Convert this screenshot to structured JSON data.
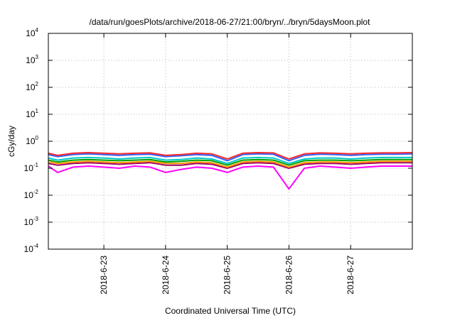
{
  "chart_data": {
    "type": "line",
    "title": "/data/run/goesPlots/archive/2018-06-27/21:00/bryn/../bryn/5daysMoon.plot",
    "xlabel": "Coordinated Universal Time (UTC)",
    "ylabel": "cGy/day",
    "yscale": "log",
    "ylim": [
      0.0001,
      10000
    ],
    "xlim": [
      22.1,
      28.0
    ],
    "grid": true,
    "y_ticks": [
      {
        "value": 0.0001,
        "base": "10",
        "exp": "-4"
      },
      {
        "value": 0.001,
        "base": "10",
        "exp": "-3"
      },
      {
        "value": 0.01,
        "base": "10",
        "exp": "-2"
      },
      {
        "value": 0.1,
        "base": "10",
        "exp": "-1"
      },
      {
        "value": 1,
        "base": "10",
        "exp": "0"
      },
      {
        "value": 10,
        "base": "10",
        "exp": "1"
      },
      {
        "value": 100,
        "base": "10",
        "exp": "2"
      },
      {
        "value": 1000,
        "base": "10",
        "exp": "3"
      },
      {
        "value": 10000,
        "base": "10",
        "exp": "4"
      }
    ],
    "x_ticks": [
      {
        "value": 23,
        "label": "2018-6-23"
      },
      {
        "value": 24,
        "label": "2018-6-24"
      },
      {
        "value": 25,
        "label": "2018-6-25"
      },
      {
        "value": 26,
        "label": "2018-6-26"
      },
      {
        "value": 27,
        "label": "2018-6-27"
      }
    ],
    "x": [
      22.1,
      22.25,
      22.5,
      22.75,
      23.0,
      23.25,
      23.5,
      23.75,
      24.0,
      24.25,
      24.5,
      24.75,
      25.0,
      25.25,
      25.5,
      25.75,
      26.0,
      26.25,
      26.5,
      26.75,
      27.0,
      27.25,
      27.5,
      27.75,
      28.0
    ],
    "series": [
      {
        "color": "#ff2a2a",
        "values": [
          0.36,
          0.3,
          0.36,
          0.38,
          0.36,
          0.34,
          0.36,
          0.37,
          0.3,
          0.32,
          0.36,
          0.34,
          0.22,
          0.36,
          0.38,
          0.37,
          0.22,
          0.34,
          0.37,
          0.36,
          0.34,
          0.36,
          0.37,
          0.37,
          0.38
        ]
      },
      {
        "color": "#3060ff",
        "values": [
          0.32,
          0.27,
          0.32,
          0.34,
          0.32,
          0.3,
          0.32,
          0.33,
          0.27,
          0.29,
          0.32,
          0.3,
          0.19,
          0.32,
          0.34,
          0.33,
          0.19,
          0.3,
          0.33,
          0.32,
          0.3,
          0.32,
          0.33,
          0.33,
          0.34
        ]
      },
      {
        "color": "#00c8c8",
        "values": [
          0.24,
          0.2,
          0.24,
          0.25,
          0.24,
          0.22,
          0.24,
          0.25,
          0.2,
          0.21,
          0.24,
          0.22,
          0.15,
          0.24,
          0.25,
          0.24,
          0.15,
          0.22,
          0.24,
          0.24,
          0.22,
          0.24,
          0.25,
          0.25,
          0.25
        ]
      },
      {
        "color": "#00a000",
        "values": [
          0.2,
          0.17,
          0.2,
          0.21,
          0.2,
          0.19,
          0.2,
          0.21,
          0.17,
          0.18,
          0.2,
          0.19,
          0.13,
          0.2,
          0.21,
          0.2,
          0.13,
          0.19,
          0.2,
          0.2,
          0.19,
          0.2,
          0.21,
          0.21,
          0.21
        ]
      },
      {
        "color": "#ff9900",
        "values": [
          0.17,
          0.15,
          0.17,
          0.18,
          0.17,
          0.16,
          0.17,
          0.18,
          0.15,
          0.15,
          0.17,
          0.16,
          0.11,
          0.17,
          0.18,
          0.17,
          0.11,
          0.16,
          0.17,
          0.17,
          0.16,
          0.17,
          0.18,
          0.18,
          0.18
        ]
      },
      {
        "color": "#a00060",
        "values": [
          0.15,
          0.13,
          0.15,
          0.16,
          0.15,
          0.14,
          0.15,
          0.16,
          0.13,
          0.13,
          0.15,
          0.14,
          0.1,
          0.15,
          0.16,
          0.15,
          0.1,
          0.14,
          0.15,
          0.15,
          0.14,
          0.15,
          0.16,
          0.16,
          0.16
        ]
      },
      {
        "color": "#ff00ff",
        "values": [
          0.12,
          0.07,
          0.11,
          0.12,
          0.11,
          0.1,
          0.12,
          0.11,
          0.07,
          0.09,
          0.11,
          0.1,
          0.07,
          0.11,
          0.12,
          0.11,
          0.017,
          0.1,
          0.12,
          0.11,
          0.1,
          0.11,
          0.12,
          0.12,
          0.12
        ]
      }
    ]
  }
}
